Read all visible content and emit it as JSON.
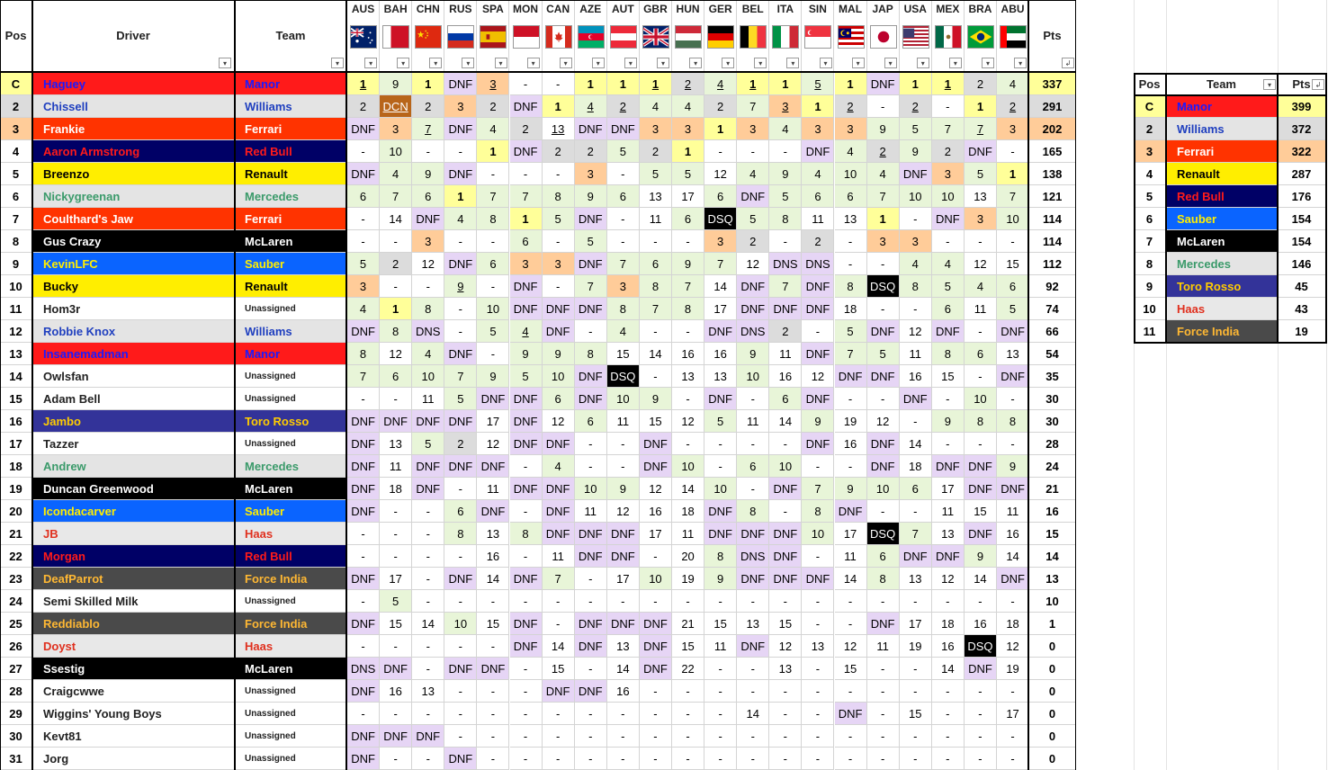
{
  "header": {
    "pos": "Pos",
    "driver": "Driver",
    "team": "Team",
    "pts": "Pts"
  },
  "races": [
    "AUS",
    "BAH",
    "CHN",
    "RUS",
    "SPA",
    "MON",
    "CAN",
    "AZE",
    "AUT",
    "GBR",
    "HUN",
    "GER",
    "BEL",
    "ITA",
    "SIN",
    "MAL",
    "JAP",
    "USA",
    "MEX",
    "BRA",
    "ABU"
  ],
  "colors": {
    "dnf": "#e6d5f5",
    "p1": "#ffff99",
    "p2": "#dcdcdc",
    "p3": "#ffcc99",
    "pts": "#e8f5d8",
    "black": "#000000",
    "dcn": "#b8651a"
  },
  "teams": {
    "Manor": {
      "bg": "#ff1a1a",
      "fg": "#1a1aff"
    },
    "Williams": {
      "bg": "#e4e4e4",
      "fg": "#1f3fbf"
    },
    "Ferrari": {
      "bg": "#ff3300",
      "fg": "#ffffff"
    },
    "Red Bull": {
      "bg": "#000066",
      "fg": "#ff1a1a"
    },
    "Renault": {
      "bg": "#ffee00",
      "fg": "#000000"
    },
    "Mercedes": {
      "bg": "#e4e4e4",
      "fg": "#3a9a6a"
    },
    "McLaren": {
      "bg": "#000000",
      "fg": "#ffffff"
    },
    "Sauber": {
      "bg": "#0a64ff",
      "fg": "#ffee00"
    },
    "Toro Rosso": {
      "bg": "#333399",
      "fg": "#ffcc00"
    },
    "Haas": {
      "bg": "#e8e8e8",
      "fg": "#e0301e"
    },
    "Force India": {
      "bg": "#4a4a4a",
      "fg": "#ffb833"
    },
    "Unassigned": {
      "bg": "#ffffff",
      "fg": "#222222"
    }
  },
  "drivers": [
    {
      "pos": "C",
      "name": "Haguey",
      "team": "Manor",
      "pts": "337",
      "r": [
        "1u",
        "9",
        "1",
        "DNF",
        "3u",
        "-",
        "-",
        "1",
        "1",
        "1u",
        "2u",
        "4u",
        "1u",
        "1",
        "5u",
        "1",
        "DNF",
        "1",
        "1u",
        "2",
        "4"
      ]
    },
    {
      "pos": "2",
      "name": "Chissell",
      "team": "Williams",
      "pts": "291",
      "r": [
        "2",
        "DCN",
        "2",
        "3",
        "2",
        "DNF",
        "1",
        "4u",
        "2u",
        "4",
        "4",
        "2",
        "7",
        "3u",
        "1",
        "2u",
        "-",
        "2u",
        "-",
        "1",
        "2u"
      ]
    },
    {
      "pos": "3",
      "name": "Frankie",
      "team": "Ferrari",
      "pts": "202",
      "r": [
        "DNF",
        "3",
        "7u",
        "DNF",
        "4",
        "2",
        "13u",
        "DNF",
        "DNF",
        "3",
        "3",
        "1",
        "3",
        "4",
        "3",
        "3",
        "9",
        "5",
        "7",
        "7u",
        "3"
      ]
    },
    {
      "pos": "4",
      "name": "Aaron Armstrong",
      "team": "Red Bull",
      "pts": "165",
      "r": [
        "-",
        "10",
        "-",
        "-",
        "1",
        "DNF",
        "2",
        "2",
        "5",
        "2",
        "1",
        "-",
        "-",
        "-",
        "DNF",
        "4",
        "2u",
        "9",
        "2",
        "DNF",
        "-"
      ]
    },
    {
      "pos": "5",
      "name": "Breenzo",
      "team": "Renault",
      "pts": "138",
      "r": [
        "DNF",
        "4",
        "9",
        "DNF",
        "-",
        "-",
        "-",
        "3",
        "-",
        "5",
        "5",
        "12",
        "4",
        "9",
        "4",
        "10",
        "4",
        "DNF",
        "3",
        "5",
        "1"
      ]
    },
    {
      "pos": "6",
      "name": "Nickygreenan",
      "team": "Mercedes",
      "pts": "121",
      "r": [
        "6",
        "7",
        "6",
        "1",
        "7",
        "7",
        "8",
        "9",
        "6",
        "13",
        "17",
        "6",
        "DNF",
        "5",
        "6",
        "6",
        "7",
        "10",
        "10",
        "13",
        "7"
      ]
    },
    {
      "pos": "7",
      "name": "Coulthard's Jaw",
      "team": "Ferrari",
      "pts": "114",
      "r": [
        "-",
        "14",
        "DNF",
        "4",
        "8",
        "1",
        "5",
        "DNF",
        "-",
        "11",
        "6",
        "DSQ",
        "5",
        "8",
        "11",
        "13",
        "1",
        "-",
        "DNF",
        "3",
        "10"
      ]
    },
    {
      "pos": "8",
      "name": "Gus Crazy",
      "team": "McLaren",
      "pts": "114",
      "r": [
        "-",
        "-",
        "3",
        "-",
        "-",
        "6",
        "-",
        "5",
        "-",
        "-",
        "-",
        "3",
        "2",
        "-",
        "2",
        "-",
        "3",
        "3",
        "-",
        "-",
        "-"
      ]
    },
    {
      "pos": "9",
      "name": "KevinLFC",
      "team": "Sauber",
      "pts": "112",
      "r": [
        "5",
        "2",
        "12",
        "DNF",
        "6",
        "3",
        "3",
        "DNF",
        "7",
        "6",
        "9",
        "7",
        "12",
        "DNS",
        "DNS",
        "-",
        "-",
        "4",
        "4",
        "12",
        "15"
      ]
    },
    {
      "pos": "10",
      "name": "Bucky",
      "team": "Renault",
      "pts": "92",
      "r": [
        "3",
        "-",
        "-",
        "9u",
        "-",
        "DNF",
        "-",
        "7",
        "3",
        "8",
        "7",
        "14",
        "DNF",
        "7",
        "DNF",
        "8",
        "DSQ",
        "8",
        "5",
        "4",
        "6"
      ]
    },
    {
      "pos": "11",
      "name": "Hom3r",
      "team": "Unassigned",
      "pts": "74",
      "r": [
        "4",
        "1",
        "8",
        "-",
        "10",
        "DNF",
        "DNF",
        "DNF",
        "8",
        "7",
        "8",
        "17",
        "DNF",
        "DNF",
        "DNF",
        "18",
        "-",
        "-",
        "6",
        "11",
        "5"
      ]
    },
    {
      "pos": "12",
      "name": "Robbie Knox",
      "team": "Williams",
      "pts": "66",
      "r": [
        "DNF",
        "8",
        "DNS",
        "-",
        "5",
        "4u",
        "DNF",
        "-",
        "4",
        "-",
        "-",
        "DNF",
        "DNS",
        "2",
        "-",
        "5",
        "DNF",
        "12",
        "DNF",
        "-",
        "DNF"
      ]
    },
    {
      "pos": "13",
      "name": "Insanemadman",
      "team": "Manor",
      "pts": "54",
      "r": [
        "8",
        "12",
        "4",
        "DNF",
        "-",
        "9",
        "9",
        "8",
        "15",
        "14",
        "16",
        "16",
        "9",
        "11",
        "DNF",
        "7",
        "5",
        "11",
        "8",
        "6",
        "13"
      ]
    },
    {
      "pos": "14",
      "name": "Owlsfan",
      "team": "Unassigned",
      "pts": "35",
      "r": [
        "7",
        "6",
        "10",
        "7",
        "9",
        "5",
        "10",
        "DNF",
        "DSQ",
        "-",
        "13",
        "13",
        "10",
        "16",
        "12",
        "DNF",
        "DNF",
        "16",
        "15",
        "-",
        "DNF"
      ]
    },
    {
      "pos": "15",
      "name": "Adam Bell",
      "team": "Unassigned",
      "pts": "30",
      "r": [
        "-",
        "-",
        "11",
        "5",
        "DNF",
        "DNF",
        "6",
        "DNF",
        "10",
        "9",
        "-",
        "DNF",
        "-",
        "6",
        "DNF",
        "-",
        "-",
        "DNF",
        "-",
        "10",
        "-"
      ]
    },
    {
      "pos": "16",
      "name": "Jambo",
      "team": "Toro Rosso",
      "pts": "30",
      "r": [
        "DNF",
        "DNF",
        "DNF",
        "DNF",
        "17",
        "DNF",
        "12",
        "6",
        "11",
        "15",
        "12",
        "5",
        "11",
        "14",
        "9",
        "19",
        "12",
        "-",
        "9",
        "8",
        "8"
      ]
    },
    {
      "pos": "17",
      "name": "Tazzer",
      "team": "Unassigned",
      "pts": "28",
      "r": [
        "DNF",
        "13",
        "5",
        "2",
        "12",
        "DNF",
        "DNF",
        "-",
        "-",
        "DNF",
        "-",
        "-",
        "-",
        "-",
        "DNF",
        "16",
        "DNF",
        "14",
        "-",
        "-",
        "-"
      ]
    },
    {
      "pos": "18",
      "name": "Andrew",
      "team": "Mercedes",
      "pts": "24",
      "r": [
        "DNF",
        "11",
        "DNF",
        "DNF",
        "DNF",
        "-",
        "4",
        "-",
        "-",
        "DNF",
        "10",
        "-",
        "6",
        "10",
        "-",
        "-",
        "DNF",
        "18",
        "DNF",
        "DNF",
        "9"
      ]
    },
    {
      "pos": "19",
      "name": "Duncan Greenwood",
      "team": "McLaren",
      "pts": "21",
      "r": [
        "DNF",
        "18",
        "DNF",
        "-",
        "11",
        "DNF",
        "DNF",
        "10",
        "9",
        "12",
        "14",
        "10",
        "-",
        "DNF",
        "7",
        "9",
        "10",
        "6",
        "17",
        "DNF",
        "DNF"
      ]
    },
    {
      "pos": "20",
      "name": "Icondacarver",
      "team": "Sauber",
      "pts": "16",
      "r": [
        "DNF",
        "-",
        "-",
        "6",
        "DNF",
        "-",
        "DNF",
        "11",
        "12",
        "16",
        "18",
        "DNF",
        "8",
        "-",
        "8",
        "DNF",
        "-",
        "-",
        "11",
        "15",
        "11"
      ]
    },
    {
      "pos": "21",
      "name": "JB",
      "team": "Haas",
      "pts": "15",
      "r": [
        "-",
        "-",
        "-",
        "8",
        "13",
        "8",
        "DNF",
        "DNF",
        "DNF",
        "17",
        "11",
        "DNF",
        "DNF",
        "DNF",
        "10",
        "17",
        "DSQ",
        "7",
        "13",
        "DNF",
        "16"
      ]
    },
    {
      "pos": "22",
      "name": "Morgan",
      "team": "Red Bull",
      "pts": "14",
      "r": [
        "-",
        "-",
        "-",
        "-",
        "16",
        "-",
        "11",
        "DNF",
        "DNF",
        "-",
        "20",
        "8",
        "DNS",
        "DNF",
        "-",
        "11",
        "6",
        "DNF",
        "DNF",
        "9",
        "14"
      ]
    },
    {
      "pos": "23",
      "name": "DeafParrot",
      "team": "Force India",
      "pts": "13",
      "r": [
        "DNF",
        "17",
        "-",
        "DNF",
        "14",
        "DNF",
        "7",
        "-",
        "17",
        "10",
        "19",
        "9",
        "DNF",
        "DNF",
        "DNF",
        "14",
        "8",
        "13",
        "12",
        "14",
        "DNF"
      ]
    },
    {
      "pos": "24",
      "name": "Semi Skilled Milk",
      "team": "Unassigned",
      "pts": "10",
      "r": [
        "-",
        "5",
        "-",
        "-",
        "-",
        "-",
        "-",
        "-",
        "-",
        "-",
        "-",
        "-",
        "-",
        "-",
        "-",
        "-",
        "-",
        "-",
        "-",
        "-",
        "-"
      ]
    },
    {
      "pos": "25",
      "name": "Reddiablo",
      "team": "Force India",
      "pts": "1",
      "r": [
        "DNF",
        "15",
        "14",
        "10",
        "15",
        "DNF",
        "-",
        "DNF",
        "DNF",
        "DNF",
        "21",
        "15",
        "13",
        "15",
        "-",
        "-",
        "DNF",
        "17",
        "18",
        "16",
        "18"
      ]
    },
    {
      "pos": "26",
      "name": "Doyst",
      "team": "Haas",
      "pts": "0",
      "r": [
        "-",
        "-",
        "-",
        "-",
        "-",
        "DNF",
        "14",
        "DNF",
        "13",
        "DNF",
        "15",
        "11",
        "DNF",
        "12",
        "13",
        "12",
        "11",
        "19",
        "16",
        "DSQ",
        "12"
      ]
    },
    {
      "pos": "27",
      "name": "Ssestig",
      "team": "McLaren",
      "pts": "0",
      "r": [
        "DNS",
        "DNF",
        "-",
        "DNF",
        "DNF",
        "-",
        "15",
        "-",
        "14",
        "DNF",
        "22",
        "-",
        "-",
        "13",
        "-",
        "15",
        "-",
        "-",
        "14",
        "DNF",
        "19"
      ]
    },
    {
      "pos": "28",
      "name": "Craigcwwe",
      "team": "Unassigned",
      "pts": "0",
      "r": [
        "DNF",
        "16",
        "13",
        "-",
        "-",
        "-",
        "DNF",
        "DNF",
        "16",
        "-",
        "-",
        "-",
        "-",
        "-",
        "-",
        "-",
        "-",
        "-",
        "-",
        "-",
        "-"
      ]
    },
    {
      "pos": "29",
      "name": "Wiggins' Young Boys",
      "team": "Unassigned",
      "pts": "0",
      "r": [
        "-",
        "-",
        "-",
        "-",
        "-",
        "-",
        "-",
        "-",
        "-",
        "-",
        "-",
        "-",
        "14",
        "-",
        "-",
        "DNF",
        "-",
        "15",
        "-",
        "-",
        "17"
      ]
    },
    {
      "pos": "30",
      "name": "Kevt81",
      "team": "Unassigned",
      "pts": "0",
      "r": [
        "DNF",
        "DNF",
        "DNF",
        "-",
        "-",
        "-",
        "-",
        "-",
        "-",
        "-",
        "-",
        "-",
        "-",
        "-",
        "-",
        "-",
        "-",
        "-",
        "-",
        "-",
        "-"
      ]
    },
    {
      "pos": "31",
      "name": "Jorg",
      "team": "Unassigned",
      "pts": "0",
      "r": [
        "DNF",
        "-",
        "-",
        "DNF",
        "-",
        "-",
        "-",
        "-",
        "-",
        "-",
        "-",
        "-",
        "-",
        "-",
        "-",
        "-",
        "-",
        "-",
        "-",
        "-",
        "-"
      ]
    }
  ],
  "constructors": {
    "header": {
      "pos": "Pos",
      "team": "Team",
      "pts": "Pts"
    },
    "rows": [
      {
        "pos": "C",
        "team": "Manor",
        "pts": "399"
      },
      {
        "pos": "2",
        "team": "Williams",
        "pts": "372"
      },
      {
        "pos": "3",
        "team": "Ferrari",
        "pts": "322"
      },
      {
        "pos": "4",
        "team": "Renault",
        "pts": "287"
      },
      {
        "pos": "5",
        "team": "Red Bull",
        "pts": "176"
      },
      {
        "pos": "6",
        "team": "Sauber",
        "pts": "154"
      },
      {
        "pos": "7",
        "team": "McLaren",
        "pts": "154"
      },
      {
        "pos": "8",
        "team": "Mercedes",
        "pts": "146"
      },
      {
        "pos": "9",
        "team": "Toro Rosso",
        "pts": "45"
      },
      {
        "pos": "10",
        "team": "Haas",
        "pts": "43"
      },
      {
        "pos": "11",
        "team": "Force India",
        "pts": "19"
      }
    ]
  },
  "icons": {
    "filter": "filter-dropdown-icon",
    "sort": "sort-descending-icon"
  }
}
